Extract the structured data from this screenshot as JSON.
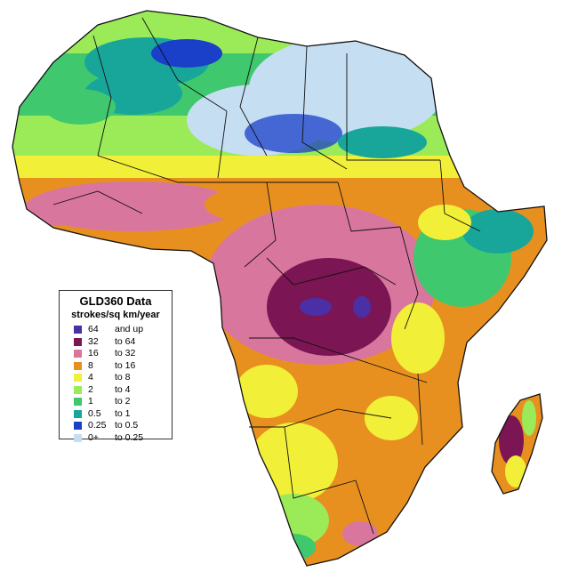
{
  "legend": {
    "title": "GLD360 Data",
    "subtitle": "strokes/sq km/year",
    "classes": [
      {
        "low": "64",
        "high": "and up",
        "color": "#4B2FA6"
      },
      {
        "low": "32",
        "high": "to 64",
        "color": "#7B1553"
      },
      {
        "low": "16",
        "high": "to 32",
        "color": "#D9769E"
      },
      {
        "low": "8",
        "high": "to 16",
        "color": "#E8901F"
      },
      {
        "low": "4",
        "high": "to   8",
        "color": "#F2EF38"
      },
      {
        "low": "2",
        "high": "to   4",
        "color": "#9BEA58"
      },
      {
        "low": "1",
        "high": "to   2",
        "color": "#40C86E"
      },
      {
        "low": "0.5",
        "high": "to   1",
        "color": "#18A69B"
      },
      {
        "low": "0.25",
        "high": "to   0.5",
        "color": "#1A3FC8"
      },
      {
        "low": "0+",
        "high": "to   0.25",
        "color": "#C6DEF2"
      }
    ]
  },
  "map": {
    "region": "Africa",
    "ocean_color": "#ffffff",
    "border_color": "#111111"
  }
}
